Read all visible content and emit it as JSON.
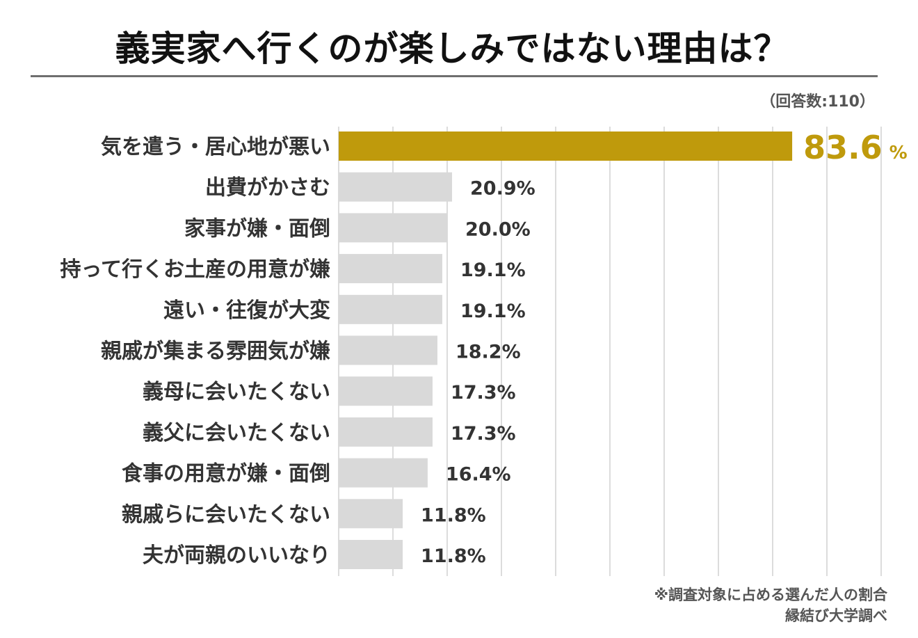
{
  "title": "義実家へ行くのが楽しみではない理由は？",
  "respondents": "（回答数:110）",
  "footnote": {
    "line1": "※調査対象に占める選んだ人の割合",
    "line2": "縁結び大学調べ"
  },
  "colors": {
    "highlight": "#bf9a0c",
    "bar": "#d9d9d9",
    "grid": "#d0d0d0",
    "label": "#333333",
    "value": "#333333"
  },
  "chart_data": {
    "type": "bar",
    "orientation": "horizontal",
    "title": "義実家へ行くのが楽しみではない理由は？",
    "xlim": [
      0,
      100
    ],
    "grid": true,
    "highlight_index": 0,
    "unit": "%",
    "categories": [
      "気を遣う・居心地が悪い",
      "出費がかさむ",
      "家事が嫌・面倒",
      "持って行くお土産の用意が嫌",
      "遠い・往復が大変",
      "親戚が集まる雰囲気が嫌",
      "義母に会いたくない",
      "義父に会いたくない",
      "食事の用意が嫌・面倒",
      "親戚らに会いたくない",
      "夫が両親のいいなり"
    ],
    "values": [
      83.6,
      20.9,
      20.0,
      19.1,
      19.1,
      18.2,
      17.3,
      17.3,
      16.4,
      11.8,
      11.8
    ],
    "value_labels": [
      "83.6",
      "20.9%",
      "20.0%",
      "19.1%",
      "19.1%",
      "18.2%",
      "17.3%",
      "17.3%",
      "16.4%",
      "11.8%",
      "11.8%"
    ]
  }
}
